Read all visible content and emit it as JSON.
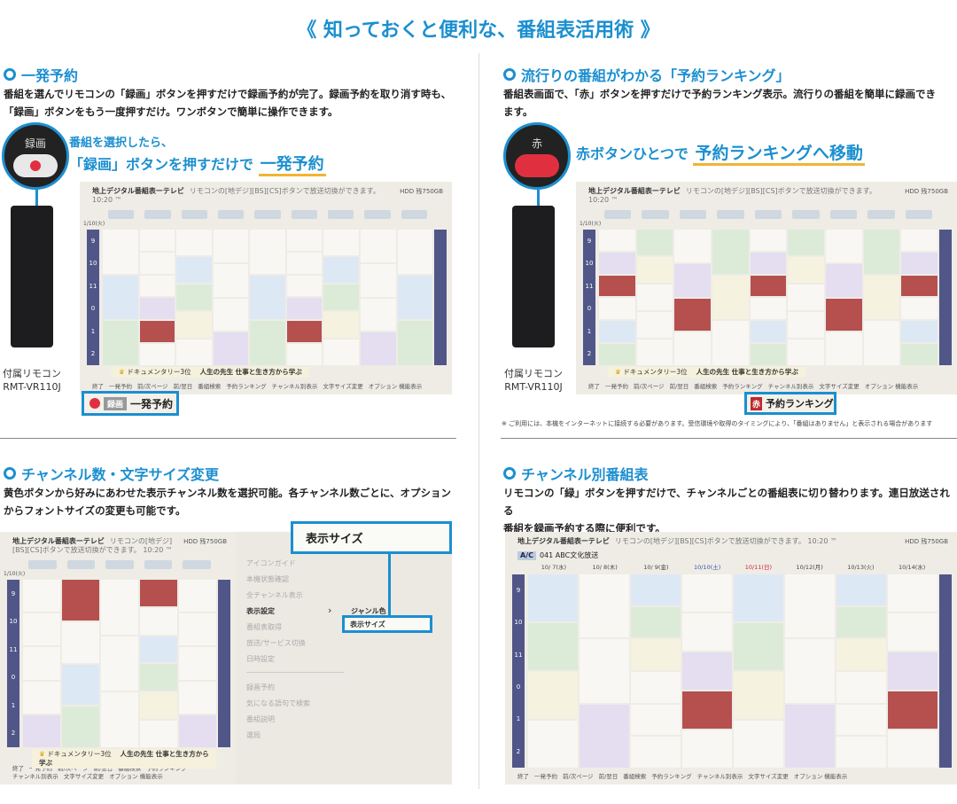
{
  "title": "《 知っておくと便利な、番組表活用術 》",
  "sections": [
    {
      "heading": "一発予約",
      "desc": [
        "番組を選んでリモコンの「録画」ボタンを押すだけで録画予約が完了。録画予約を取り消す時も、",
        "「録画」ボタンをもう一度押すだけ。ワンボタンで簡単に操作できます。"
      ],
      "button_label": "録画",
      "callout_line1": "番組を選択したら、",
      "callout_line2": "「録画」ボタンを押すだけで",
      "callout_em": "一発予約",
      "remote_label": [
        "付属リモコン",
        "RMT-VR110J"
      ],
      "highlight_key": "録画",
      "highlight_text": "一発予約"
    },
    {
      "heading": "流行りの番組がわかる「予約ランキング」",
      "desc": [
        "番組表画面で、「赤」ボタンを押すだけで予約ランキング表示。流行りの番組を簡単に録画でき",
        "ます。"
      ],
      "button_label": "赤",
      "callout_line": "赤ボタンひとつで",
      "callout_em": "予約ランキングへ移動",
      "remote_label": [
        "付属リモコン",
        "RMT-VR110J"
      ],
      "highlight_key": "赤",
      "highlight_text": "予約ランキング",
      "footnote": "※ ご利用には、本機をインターネットに接続する必要があります。受信環境や取得のタイミングにより、「番組はありません」と表示される場合があります"
    },
    {
      "heading": "チャンネル数・文字サイズ変更",
      "desc": [
        "黄色ボタンから好みにあわせた表示チャンネル数を選択可能。各チャンネル数ごとに、オプション",
        "からフォントサイズの変更も可能です。"
      ],
      "highlight_text": "表示サイズ",
      "menu": {
        "items": [
          "アイコンガイド",
          "本機状態確認",
          "全チャンネル表示",
          "表示設定",
          "番組表取得",
          "放送/サービス切換",
          "日時設定",
          "録画予約",
          "気になる語句で検索",
          "番組説明",
          "選局"
        ],
        "active": "表示設定",
        "submenu": [
          "ジャンル色",
          "表示サイズ"
        ],
        "submenu_selected": "表示サイズ",
        "arrow": "›"
      }
    },
    {
      "heading": "チャンネル別番組表",
      "desc": [
        "リモコンの「緑」ボタンを押すだけで、チャンネルごとの番組表に切り替わります。連日放送される",
        "番組を録画予約する際に便利です。"
      ],
      "channel": "041 ABC文化放送",
      "channel_logo": "A/C",
      "dates": [
        "10/ 7(水)",
        "10/ 8(木)",
        "10/ 9(金)",
        "10/10(土)",
        "10/11(日)",
        "10/12(月)",
        "10/13(火)",
        "10/14(水)"
      ]
    }
  ],
  "epg": {
    "header": "地上デジタル番組表ーテレビ",
    "hint": "リモコンの[地デジ][BS][CS]ボタンで放送切換ができます。 10:20 ™",
    "storage": "HDD 残750GB",
    "date": "1/10(火)",
    "times": [
      "9",
      "10",
      "11",
      "0",
      "1",
      "2"
    ],
    "periods": [
      "夜",
      "深夜"
    ],
    "ranking_strip": {
      "rank": "ドキュメンタリー3位",
      "program": "人生の先生 仕事と生き方から学ぶ"
    },
    "legend": [
      "終了",
      "一発予約",
      "前/次ページ",
      "前/翌日",
      "番組検索",
      "予約ランキング",
      "チャンネル別表示",
      "文字サイズ変更",
      "オプション 機能表示"
    ]
  },
  "colors": {
    "accent": "#1b8fd0",
    "underline": "#f0b533",
    "red": "#e03040",
    "time_bar": "#515688"
  }
}
